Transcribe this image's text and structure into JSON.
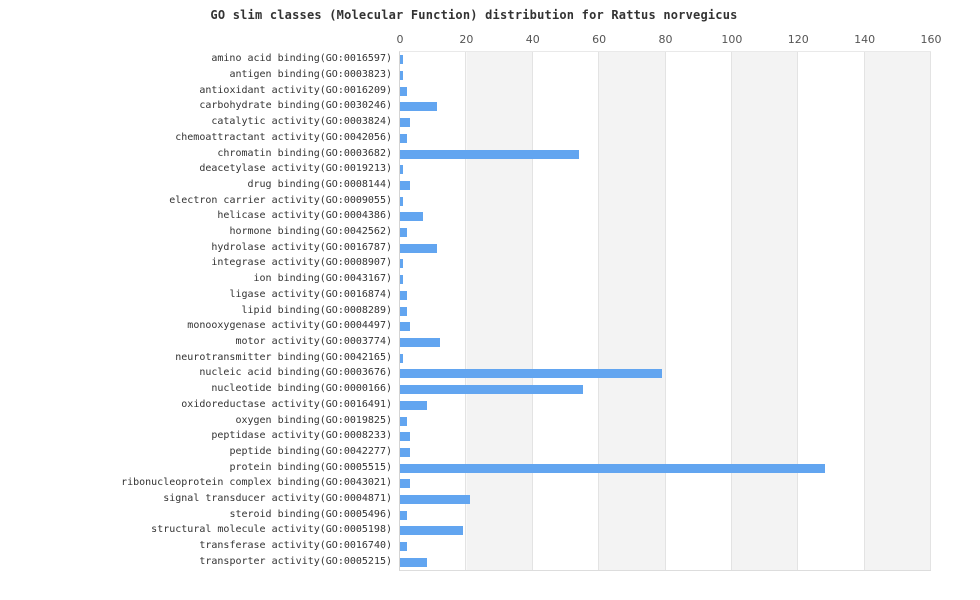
{
  "chart_data": {
    "type": "bar",
    "orientation": "horizontal",
    "title": "GO slim classes (Molecular Function) distribution for Rattus norvegicus",
    "xlabel": "",
    "ylabel": "",
    "xlim": [
      0,
      160
    ],
    "x_ticks": [
      0,
      20,
      40,
      60,
      80,
      100,
      120,
      140,
      160
    ],
    "x_axis_position": "top",
    "grid": "vertical gridlines every 20 with alternating white/gray column bands",
    "legend_position": "none",
    "bar_color": "#62a5f0",
    "band_color": "#f3f3f3",
    "categories": [
      "amino acid binding(GO:0016597)",
      "antigen binding(GO:0003823)",
      "antioxidant activity(GO:0016209)",
      "carbohydrate binding(GO:0030246)",
      "catalytic activity(GO:0003824)",
      "chemoattractant activity(GO:0042056)",
      "chromatin binding(GO:0003682)",
      "deacetylase activity(GO:0019213)",
      "drug binding(GO:0008144)",
      "electron carrier activity(GO:0009055)",
      "helicase activity(GO:0004386)",
      "hormone binding(GO:0042562)",
      "hydrolase activity(GO:0016787)",
      "integrase activity(GO:0008907)",
      "ion binding(GO:0043167)",
      "ligase activity(GO:0016874)",
      "lipid binding(GO:0008289)",
      "monooxygenase activity(GO:0004497)",
      "motor activity(GO:0003774)",
      "neurotransmitter binding(GO:0042165)",
      "nucleic acid binding(GO:0003676)",
      "nucleotide binding(GO:0000166)",
      "oxidoreductase activity(GO:0016491)",
      "oxygen binding(GO:0019825)",
      "peptidase activity(GO:0008233)",
      "peptide binding(GO:0042277)",
      "protein binding(GO:0005515)",
      "ribonucleoprotein complex binding(GO:0043021)",
      "signal transducer activity(GO:0004871)",
      "steroid binding(GO:0005496)",
      "structural molecule activity(GO:0005198)",
      "transferase activity(GO:0016740)",
      "transporter activity(GO:0005215)"
    ],
    "values": [
      1,
      1,
      2,
      11,
      3,
      2,
      54,
      1,
      3,
      1,
      7,
      2,
      11,
      1,
      1,
      2,
      2,
      3,
      12,
      1,
      79,
      55,
      8,
      2,
      3,
      3,
      128,
      3,
      21,
      2,
      19,
      2,
      8
    ]
  }
}
